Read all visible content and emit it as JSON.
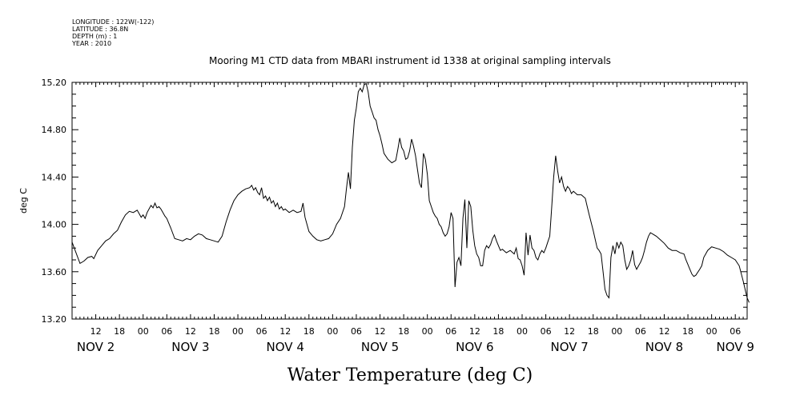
{
  "meta": {
    "longitude": "LONGITUDE : 122W(-122)",
    "latitude": "LATITUDE : 36.8N",
    "depth": "DEPTH (m) : 1",
    "year": "YEAR : 2010"
  },
  "chart_data": {
    "type": "line",
    "title": "Mooring M1 CTD data from MBARI instrument id 1338 at original sampling intervals",
    "xlabel": "Water Temperature (deg C)",
    "ylabel": "deg C",
    "xlim_hours": [
      6,
      177
    ],
    "ylim": [
      13.2,
      15.2
    ],
    "yticks": [
      13.2,
      13.6,
      14.0,
      14.4,
      14.8,
      15.2
    ],
    "ytick_labels": [
      "13.20",
      "13.60",
      "14.00",
      "14.40",
      "14.80",
      "15.20"
    ],
    "hour_ticks": [
      {
        "h": 12,
        "label": "12"
      },
      {
        "h": 18,
        "label": "18"
      },
      {
        "h": 24,
        "label": "00"
      },
      {
        "h": 30,
        "label": "06"
      },
      {
        "h": 36,
        "label": "12"
      },
      {
        "h": 42,
        "label": "18"
      },
      {
        "h": 48,
        "label": "00"
      },
      {
        "h": 54,
        "label": "06"
      },
      {
        "h": 60,
        "label": "12"
      },
      {
        "h": 66,
        "label": "18"
      },
      {
        "h": 72,
        "label": "00"
      },
      {
        "h": 78,
        "label": "06"
      },
      {
        "h": 84,
        "label": "12"
      },
      {
        "h": 90,
        "label": "18"
      },
      {
        "h": 96,
        "label": "00"
      },
      {
        "h": 102,
        "label": "06"
      },
      {
        "h": 108,
        "label": "12"
      },
      {
        "h": 114,
        "label": "18"
      },
      {
        "h": 120,
        "label": "00"
      },
      {
        "h": 126,
        "label": "06"
      },
      {
        "h": 132,
        "label": "12"
      },
      {
        "h": 138,
        "label": "18"
      },
      {
        "h": 144,
        "label": "00"
      },
      {
        "h": 150,
        "label": "06"
      },
      {
        "h": 156,
        "label": "12"
      },
      {
        "h": 162,
        "label": "18"
      },
      {
        "h": 168,
        "label": "00"
      },
      {
        "h": 174,
        "label": "06"
      }
    ],
    "date_labels": [
      {
        "h": 12,
        "label": "NOV  2"
      },
      {
        "h": 36,
        "label": "NOV  3"
      },
      {
        "h": 60,
        "label": "NOV  4"
      },
      {
        "h": 84,
        "label": "NOV  5"
      },
      {
        "h": 108,
        "label": "NOV  6"
      },
      {
        "h": 132,
        "label": "NOV  7"
      },
      {
        "h": 156,
        "label": "NOV  8"
      },
      {
        "h": 174,
        "label": "NOV  9"
      }
    ],
    "x_unit": "hours from 2010-11-01 00:00",
    "series": [
      {
        "points": [
          [
            6.0,
            13.85
          ],
          [
            7.0,
            13.76
          ],
          [
            8.0,
            13.67
          ],
          [
            9.0,
            13.69
          ],
          [
            10.0,
            13.72
          ],
          [
            11.0,
            13.73
          ],
          [
            11.5,
            13.71
          ],
          [
            12.5,
            13.78
          ],
          [
            13.5,
            13.82
          ],
          [
            14.5,
            13.86
          ],
          [
            15.5,
            13.88
          ],
          [
            16.5,
            13.92
          ],
          [
            17.5,
            13.95
          ],
          [
            18.5,
            14.02
          ],
          [
            19.5,
            14.08
          ],
          [
            20.5,
            14.11
          ],
          [
            21.5,
            14.1
          ],
          [
            22.5,
            14.12
          ],
          [
            23.0,
            14.09
          ],
          [
            23.5,
            14.06
          ],
          [
            24.0,
            14.08
          ],
          [
            24.5,
            14.05
          ],
          [
            25.0,
            14.1
          ],
          [
            25.5,
            14.13
          ],
          [
            26.0,
            14.16
          ],
          [
            26.5,
            14.14
          ],
          [
            27.0,
            14.18
          ],
          [
            27.5,
            14.14
          ],
          [
            28.0,
            14.15
          ],
          [
            28.5,
            14.13
          ],
          [
            29.0,
            14.1
          ],
          [
            29.5,
            14.07
          ],
          [
            30.0,
            14.05
          ],
          [
            31.0,
            13.97
          ],
          [
            32.0,
            13.88
          ],
          [
            33.0,
            13.87
          ],
          [
            34.0,
            13.86
          ],
          [
            35.0,
            13.88
          ],
          [
            36.0,
            13.87
          ],
          [
            37.0,
            13.9
          ],
          [
            38.0,
            13.92
          ],
          [
            39.0,
            13.91
          ],
          [
            40.0,
            13.88
          ],
          [
            41.0,
            13.87
          ],
          [
            42.0,
            13.86
          ],
          [
            43.0,
            13.85
          ],
          [
            44.0,
            13.9
          ],
          [
            45.0,
            14.02
          ],
          [
            46.0,
            14.12
          ],
          [
            47.0,
            14.2
          ],
          [
            48.0,
            14.25
          ],
          [
            49.0,
            14.28
          ],
          [
            50.0,
            14.3
          ],
          [
            51.0,
            14.31
          ],
          [
            51.5,
            14.33
          ],
          [
            52.0,
            14.29
          ],
          [
            52.5,
            14.31
          ],
          [
            53.0,
            14.27
          ],
          [
            53.5,
            14.25
          ],
          [
            54.0,
            14.31
          ],
          [
            54.5,
            14.22
          ],
          [
            55.0,
            14.24
          ],
          [
            55.5,
            14.2
          ],
          [
            56.0,
            14.23
          ],
          [
            56.5,
            14.18
          ],
          [
            57.0,
            14.2
          ],
          [
            57.5,
            14.15
          ],
          [
            58.0,
            14.18
          ],
          [
            58.5,
            14.13
          ],
          [
            59.0,
            14.15
          ],
          [
            59.5,
            14.12
          ],
          [
            60.0,
            14.13
          ],
          [
            61.0,
            14.1
          ],
          [
            62.0,
            14.12
          ],
          [
            63.0,
            14.1
          ],
          [
            64.0,
            14.11
          ],
          [
            64.5,
            14.18
          ],
          [
            65.0,
            14.06
          ],
          [
            66.0,
            13.94
          ],
          [
            67.0,
            13.9
          ],
          [
            68.0,
            13.87
          ],
          [
            69.0,
            13.86
          ],
          [
            70.0,
            13.87
          ],
          [
            71.0,
            13.88
          ],
          [
            72.0,
            13.92
          ],
          [
            73.0,
            14.0
          ],
          [
            74.0,
            14.05
          ],
          [
            75.0,
            14.15
          ],
          [
            75.5,
            14.3
          ],
          [
            76.0,
            14.44
          ],
          [
            76.5,
            14.3
          ],
          [
            77.0,
            14.65
          ],
          [
            77.5,
            14.88
          ],
          [
            78.0,
            14.98
          ],
          [
            78.5,
            15.12
          ],
          [
            79.0,
            15.15
          ],
          [
            79.5,
            15.12
          ],
          [
            80.0,
            15.18
          ],
          [
            80.5,
            15.19
          ],
          [
            81.0,
            15.12
          ],
          [
            81.5,
            15.0
          ],
          [
            82.0,
            14.95
          ],
          [
            82.5,
            14.9
          ],
          [
            83.0,
            14.88
          ],
          [
            83.5,
            14.8
          ],
          [
            84.0,
            14.75
          ],
          [
            84.5,
            14.68
          ],
          [
            85.0,
            14.6
          ],
          [
            86.0,
            14.55
          ],
          [
            87.0,
            14.52
          ],
          [
            88.0,
            14.54
          ],
          [
            88.5,
            14.63
          ],
          [
            89.0,
            14.73
          ],
          [
            89.5,
            14.65
          ],
          [
            90.0,
            14.62
          ],
          [
            90.5,
            14.55
          ],
          [
            91.0,
            14.56
          ],
          [
            91.5,
            14.62
          ],
          [
            92.0,
            14.72
          ],
          [
            92.5,
            14.66
          ],
          [
            93.0,
            14.58
          ],
          [
            93.5,
            14.46
          ],
          [
            94.0,
            14.35
          ],
          [
            94.5,
            14.31
          ],
          [
            95.0,
            14.6
          ],
          [
            95.5,
            14.55
          ],
          [
            96.0,
            14.42
          ],
          [
            96.5,
            14.2
          ],
          [
            97.0,
            14.15
          ],
          [
            97.5,
            14.1
          ],
          [
            98.0,
            14.07
          ],
          [
            98.5,
            14.05
          ],
          [
            99.0,
            14.0
          ],
          [
            99.5,
            13.98
          ],
          [
            100.0,
            13.93
          ],
          [
            100.5,
            13.9
          ],
          [
            101.0,
            13.92
          ],
          [
            101.5,
            13.98
          ],
          [
            102.0,
            14.1
          ],
          [
            102.5,
            14.05
          ],
          [
            103.0,
            13.47
          ],
          [
            103.5,
            13.68
          ],
          [
            104.0,
            13.72
          ],
          [
            104.5,
            13.65
          ],
          [
            105.0,
            14.05
          ],
          [
            105.5,
            14.21
          ],
          [
            106.0,
            13.8
          ],
          [
            106.5,
            14.2
          ],
          [
            107.0,
            14.15
          ],
          [
            107.5,
            13.95
          ],
          [
            108.0,
            13.82
          ],
          [
            108.5,
            13.75
          ],
          [
            109.0,
            13.72
          ],
          [
            109.5,
            13.65
          ],
          [
            110.0,
            13.65
          ],
          [
            110.5,
            13.78
          ],
          [
            111.0,
            13.82
          ],
          [
            111.5,
            13.8
          ],
          [
            112.0,
            13.83
          ],
          [
            112.5,
            13.88
          ],
          [
            113.0,
            13.91
          ],
          [
            113.5,
            13.86
          ],
          [
            114.0,
            13.82
          ],
          [
            114.5,
            13.78
          ],
          [
            115.0,
            13.79
          ],
          [
            116.0,
            13.76
          ],
          [
            117.0,
            13.78
          ],
          [
            118.0,
            13.75
          ],
          [
            118.5,
            13.8
          ],
          [
            119.0,
            13.71
          ],
          [
            119.5,
            13.7
          ],
          [
            120.0,
            13.65
          ],
          [
            120.5,
            13.57
          ],
          [
            121.0,
            13.93
          ],
          [
            121.5,
            13.74
          ],
          [
            122.0,
            13.91
          ],
          [
            122.5,
            13.8
          ],
          [
            123.0,
            13.78
          ],
          [
            123.5,
            13.72
          ],
          [
            124.0,
            13.7
          ],
          [
            124.5,
            13.75
          ],
          [
            125.0,
            13.78
          ],
          [
            125.5,
            13.76
          ],
          [
            126.0,
            13.8
          ],
          [
            126.5,
            13.85
          ],
          [
            127.0,
            13.9
          ],
          [
            127.5,
            14.15
          ],
          [
            128.0,
            14.4
          ],
          [
            128.5,
            14.58
          ],
          [
            129.0,
            14.45
          ],
          [
            129.5,
            14.35
          ],
          [
            130.0,
            14.4
          ],
          [
            130.5,
            14.32
          ],
          [
            131.0,
            14.28
          ],
          [
            131.5,
            14.32
          ],
          [
            132.0,
            14.3
          ],
          [
            132.5,
            14.26
          ],
          [
            133.0,
            14.28
          ],
          [
            134.0,
            14.25
          ],
          [
            135.0,
            14.25
          ],
          [
            136.0,
            14.22
          ],
          [
            136.5,
            14.15
          ],
          [
            137.0,
            14.08
          ],
          [
            138.0,
            13.95
          ],
          [
            139.0,
            13.8
          ],
          [
            139.5,
            13.78
          ],
          [
            140.0,
            13.75
          ],
          [
            140.5,
            13.6
          ],
          [
            141.0,
            13.45
          ],
          [
            141.5,
            13.4
          ],
          [
            142.0,
            13.38
          ],
          [
            142.5,
            13.72
          ],
          [
            143.0,
            13.82
          ],
          [
            143.5,
            13.75
          ],
          [
            144.0,
            13.85
          ],
          [
            144.5,
            13.8
          ],
          [
            145.0,
            13.85
          ],
          [
            145.5,
            13.82
          ],
          [
            146.0,
            13.7
          ],
          [
            146.5,
            13.62
          ],
          [
            147.0,
            13.65
          ],
          [
            147.5,
            13.7
          ],
          [
            148.0,
            13.78
          ],
          [
            148.5,
            13.66
          ],
          [
            149.0,
            13.62
          ],
          [
            149.5,
            13.65
          ],
          [
            150.0,
            13.68
          ],
          [
            150.5,
            13.72
          ],
          [
            151.0,
            13.78
          ],
          [
            151.5,
            13.85
          ],
          [
            152.0,
            13.9
          ],
          [
            152.5,
            13.93
          ],
          [
            153.0,
            13.92
          ],
          [
            154.0,
            13.9
          ],
          [
            155.0,
            13.87
          ],
          [
            156.0,
            13.84
          ],
          [
            157.0,
            13.8
          ],
          [
            158.0,
            13.78
          ],
          [
            159.0,
            13.78
          ],
          [
            160.0,
            13.76
          ],
          [
            161.0,
            13.75
          ],
          [
            161.5,
            13.7
          ],
          [
            162.0,
            13.66
          ],
          [
            162.5,
            13.62
          ],
          [
            163.0,
            13.58
          ],
          [
            163.5,
            13.56
          ],
          [
            164.0,
            13.57
          ],
          [
            165.0,
            13.62
          ],
          [
            165.5,
            13.65
          ],
          [
            166.0,
            13.72
          ],
          [
            167.0,
            13.78
          ],
          [
            168.0,
            13.81
          ],
          [
            169.0,
            13.8
          ],
          [
            170.0,
            13.79
          ],
          [
            171.0,
            13.77
          ],
          [
            172.0,
            13.74
          ],
          [
            173.0,
            13.72
          ],
          [
            174.0,
            13.7
          ],
          [
            175.0,
            13.65
          ],
          [
            176.0,
            13.52
          ],
          [
            176.5,
            13.45
          ],
          [
            177.0,
            13.38
          ],
          [
            177.5,
            13.34
          ]
        ]
      }
    ]
  }
}
